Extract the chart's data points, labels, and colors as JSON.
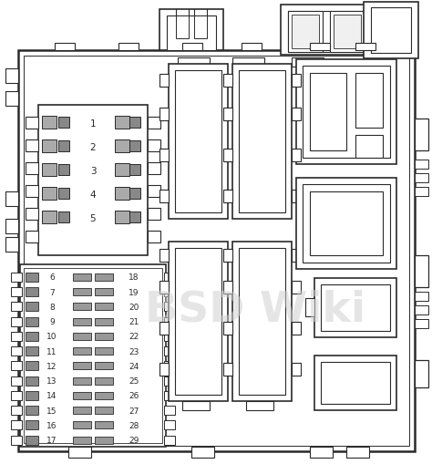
{
  "bg_color": "#ffffff",
  "line_color": "#2a2a2a",
  "lw_outer": 1.8,
  "lw_main": 1.2,
  "lw_inner": 0.8,
  "lw_thin": 0.6,
  "watermark_text": "BSD Wiki",
  "watermark_color": "#d0d0d0",
  "watermark_alpha": 0.55,
  "fuse_top_nums": [
    "1",
    "2",
    "3",
    "4",
    "5"
  ],
  "fuse_left_nums": [
    "6",
    "7",
    "8",
    "9",
    "10",
    "11",
    "12",
    "13",
    "14",
    "15",
    "16",
    "17"
  ],
  "fuse_right_nums": [
    "18",
    "19",
    "20",
    "21",
    "22",
    "23",
    "24",
    "25",
    "26",
    "27",
    "28",
    "29"
  ]
}
